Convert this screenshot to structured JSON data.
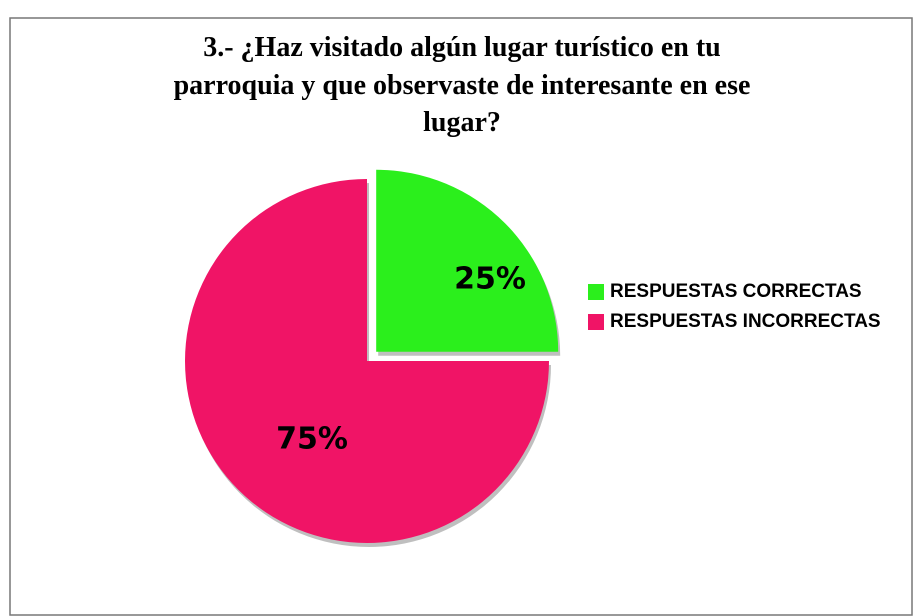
{
  "chart_data": {
    "type": "pie",
    "title": [
      "3.- ¿Haz visitado algún lugar turístico en tu",
      "parroquia y que observaste de interesante en ese",
      "lugar?"
    ],
    "categories": [
      "RESPUESTAS CORRECTAS",
      "RESPUESTAS INCORRECTAS"
    ],
    "values": [
      25,
      75
    ],
    "value_labels": [
      "25%",
      "75%"
    ],
    "colors": [
      "#2bef1c",
      "#f01466"
    ],
    "legend": "right"
  }
}
